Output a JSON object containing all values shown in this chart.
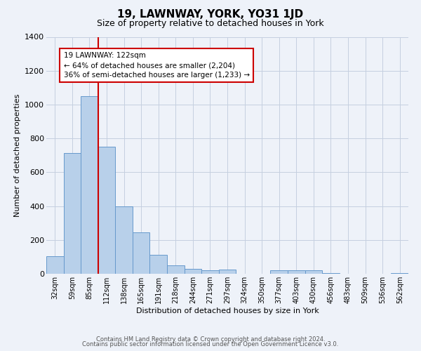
{
  "title": "19, LAWNWAY, YORK, YO31 1JD",
  "subtitle": "Size of property relative to detached houses in York",
  "xlabel": "Distribution of detached houses by size in York",
  "ylabel": "Number of detached properties",
  "footnote1": "Contains HM Land Registry data © Crown copyright and database right 2024.",
  "footnote2": "Contains public sector information licensed under the Open Government Licence v3.0.",
  "bar_labels": [
    "32sqm",
    "59sqm",
    "85sqm",
    "112sqm",
    "138sqm",
    "165sqm",
    "191sqm",
    "218sqm",
    "244sqm",
    "271sqm",
    "297sqm",
    "324sqm",
    "350sqm",
    "377sqm",
    "403sqm",
    "430sqm",
    "456sqm",
    "483sqm",
    "509sqm",
    "536sqm",
    "562sqm"
  ],
  "bar_values": [
    105,
    715,
    1050,
    750,
    400,
    245,
    110,
    50,
    30,
    20,
    25,
    0,
    0,
    20,
    20,
    20,
    5,
    0,
    0,
    0,
    5
  ],
  "bar_color": "#b8d0ea",
  "bar_edge_color": "#6699cc",
  "background_color": "#eef2f9",
  "grid_color": "#c5cfe0",
  "vline_color": "#cc0000",
  "annotation_line1": "19 LAWNWAY: 122sqm",
  "annotation_line2": "← 64% of detached houses are smaller (2,204)",
  "annotation_line3": "36% of semi-detached houses are larger (1,233) →",
  "annotation_box_color": "#ffffff",
  "annotation_box_edge_color": "#cc0000",
  "ylim": [
    0,
    1400
  ],
  "yticks": [
    0,
    200,
    400,
    600,
    800,
    1000,
    1200,
    1400
  ],
  "title_fontsize": 11,
  "subtitle_fontsize": 9
}
